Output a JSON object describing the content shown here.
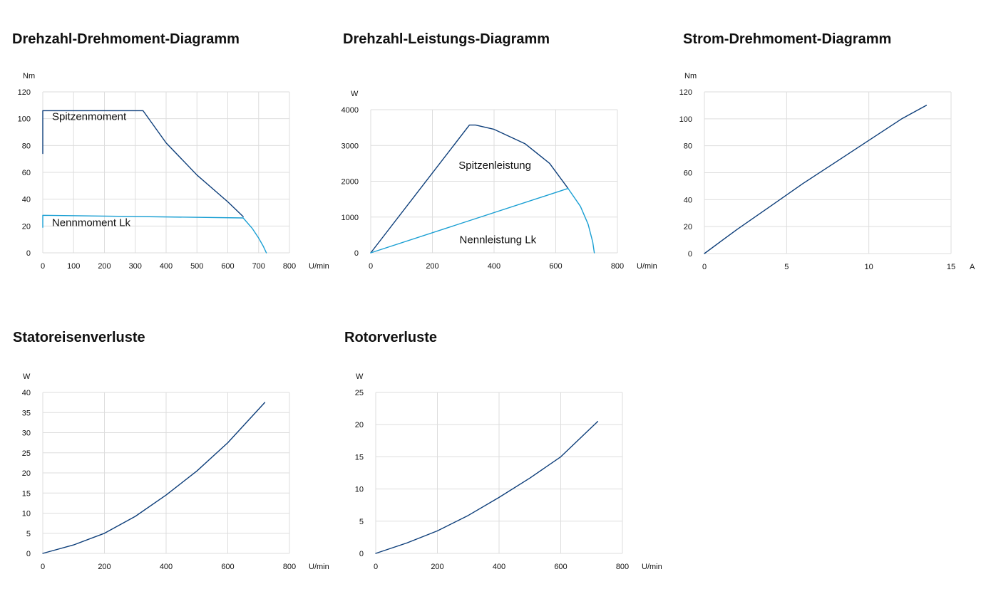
{
  "colors": {
    "dark": "#0d3e7a",
    "light": "#1a9fd3",
    "grid": "#dddddd"
  },
  "chart_data": [
    {
      "type": "line",
      "title": "Drehzahl-Drehmoment-Diagramm",
      "ylabel": "Nm",
      "xlabel": "U/min",
      "xlim": [
        0,
        800
      ],
      "ylim": [
        0,
        120
      ],
      "xticks": [
        0,
        100,
        200,
        300,
        400,
        500,
        600,
        700,
        800
      ],
      "yticks": [
        0,
        20,
        40,
        60,
        80,
        100,
        120
      ],
      "series": [
        {
          "name": "Spitzenmoment",
          "color": "dark",
          "points": [
            [
              0,
              74
            ],
            [
              0,
              106
            ],
            [
              325,
              106
            ],
            [
              400,
              82
            ],
            [
              500,
              58
            ],
            [
              600,
              38
            ],
            [
              650,
              27
            ]
          ]
        },
        {
          "name": "Nennmoment Lk",
          "color": "light",
          "points": [
            [
              0,
              19
            ],
            [
              0,
              28
            ],
            [
              650,
              26
            ]
          ]
        },
        {
          "name": "",
          "color": "light",
          "points": [
            [
              650,
              26
            ],
            [
              680,
              18
            ],
            [
              700,
              11
            ],
            [
              715,
              5
            ],
            [
              725,
              0
            ]
          ]
        }
      ],
      "annotations": [
        {
          "text": "Spitzenmoment",
          "x": 30,
          "y": 99
        },
        {
          "text": "Nennmoment Lk",
          "x": 30,
          "y": 20
        }
      ]
    },
    {
      "type": "line",
      "title": "Drehzahl-Leistungs-Diagramm",
      "ylabel": "W",
      "xlabel": "U/min",
      "xlim": [
        0,
        800
      ],
      "ylim": [
        0,
        4000
      ],
      "xticks": [
        0,
        200,
        400,
        600,
        800
      ],
      "yticks": [
        0,
        1000,
        2000,
        3000,
        4000
      ],
      "series": [
        {
          "name": "Spitzenleistung",
          "color": "dark",
          "points": [
            [
              0,
              0
            ],
            [
              320,
              3570
            ],
            [
              340,
              3570
            ],
            [
              400,
              3450
            ],
            [
              500,
              3050
            ],
            [
              580,
              2500
            ],
            [
              640,
              1800
            ]
          ]
        },
        {
          "name": "Nennleistung Lk",
          "color": "light",
          "points": [
            [
              0,
              0
            ],
            [
              640,
              1800
            ]
          ]
        },
        {
          "name": "",
          "color": "light",
          "points": [
            [
              640,
              1800
            ],
            [
              680,
              1300
            ],
            [
              705,
              800
            ],
            [
              720,
              300
            ],
            [
              725,
              0
            ]
          ]
        }
      ],
      "annotations": [
        {
          "text": "Spitzenleistung",
          "x": 285,
          "y": 2350
        },
        {
          "text": "Nennleistung Lk",
          "x": 288,
          "y": 270
        }
      ]
    },
    {
      "type": "line",
      "title": "Strom-Drehmoment-Diagramm",
      "ylabel": "Nm",
      "xlabel": "A",
      "xlim": [
        0,
        15
      ],
      "ylim": [
        0,
        120
      ],
      "xticks": [
        0,
        5,
        10,
        15
      ],
      "yticks": [
        0,
        20,
        40,
        60,
        80,
        100,
        120
      ],
      "series": [
        {
          "name": "",
          "color": "dark",
          "points": [
            [
              0,
              0
            ],
            [
              2,
              18
            ],
            [
              4,
              35
            ],
            [
              6,
              52
            ],
            [
              8,
              68
            ],
            [
              10,
              84
            ],
            [
              12,
              100
            ],
            [
              13.5,
              110
            ]
          ]
        }
      ],
      "annotations": []
    },
    {
      "type": "line",
      "title": "Statoreisenverluste",
      "ylabel": "W",
      "xlabel": "U/min",
      "xlim": [
        0,
        800
      ],
      "ylim": [
        0,
        40
      ],
      "xticks": [
        0,
        200,
        400,
        600,
        800
      ],
      "yticks": [
        0,
        5,
        10,
        15,
        20,
        25,
        30,
        35,
        40
      ],
      "series": [
        {
          "name": "",
          "color": "dark",
          "points": [
            [
              0,
              0
            ],
            [
              100,
              2.1
            ],
            [
              200,
              5
            ],
            [
              300,
              9.2
            ],
            [
              400,
              14.5
            ],
            [
              500,
              20.5
            ],
            [
              600,
              27.5
            ],
            [
              720,
              37.5
            ]
          ]
        }
      ],
      "annotations": []
    },
    {
      "type": "line",
      "title": "Rotorverluste",
      "ylabel": "W",
      "xlabel": "U/min",
      "xlim": [
        0,
        800
      ],
      "ylim": [
        0,
        25
      ],
      "xticks": [
        0,
        200,
        400,
        600,
        800
      ],
      "yticks": [
        0,
        5,
        10,
        15,
        20,
        25
      ],
      "series": [
        {
          "name": "",
          "color": "dark",
          "points": [
            [
              0,
              0
            ],
            [
              100,
              1.6
            ],
            [
              200,
              3.5
            ],
            [
              300,
              5.9
            ],
            [
              400,
              8.7
            ],
            [
              500,
              11.7
            ],
            [
              600,
              15
            ],
            [
              720,
              20.5
            ]
          ]
        }
      ],
      "annotations": []
    }
  ]
}
